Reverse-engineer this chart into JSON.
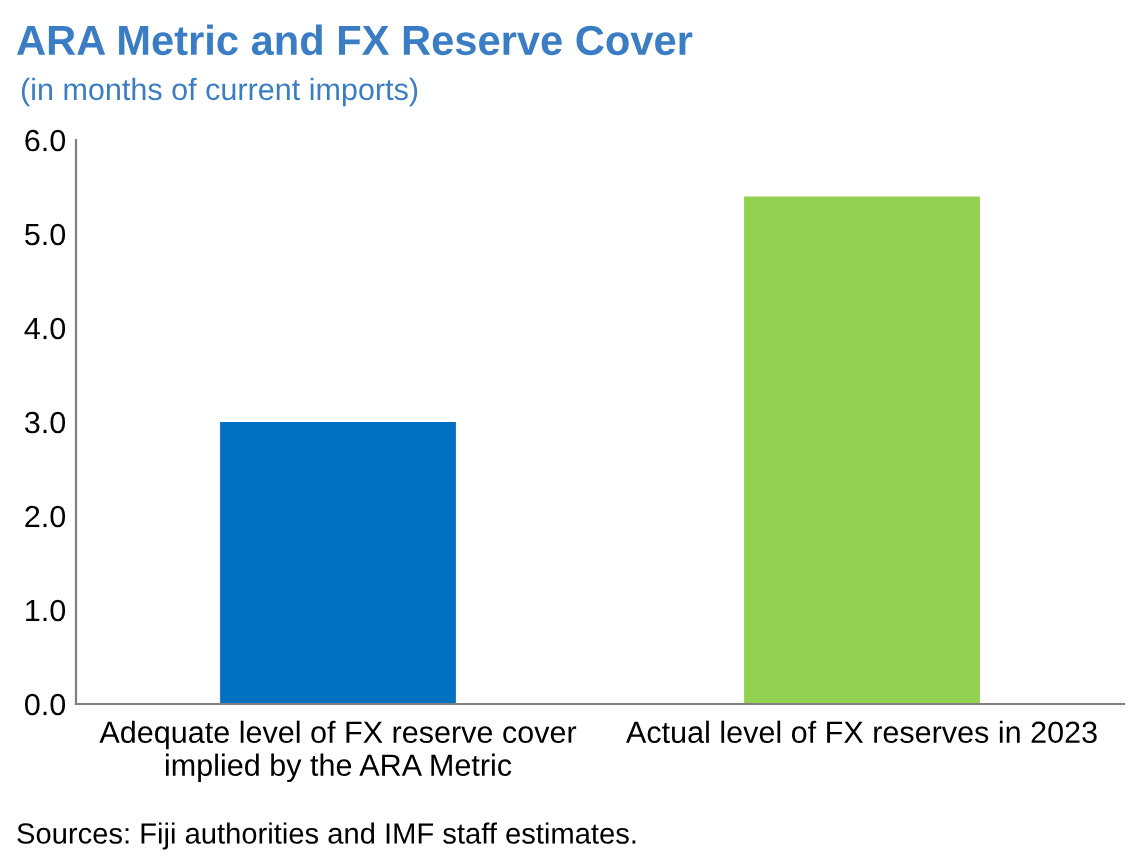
{
  "chart_data": {
    "type": "bar",
    "title": "ARA Metric and FX Reserve Cover",
    "subtitle": "(in months of current imports)",
    "categories": [
      "Adequate level of FX reserve cover\nimplied by the ARA Metric",
      "Actual level of FX reserves in 2023"
    ],
    "values": [
      3.0,
      5.4
    ],
    "colors": [
      "#0070c0",
      "#92d050"
    ],
    "ylim": [
      0,
      6
    ],
    "yticks": [
      {
        "value": 0,
        "label": "0.0"
      },
      {
        "value": 1,
        "label": "1.0"
      },
      {
        "value": 2,
        "label": "2.0"
      },
      {
        "value": 3,
        "label": "3.0"
      },
      {
        "value": 4,
        "label": "4.0"
      },
      {
        "value": 5,
        "label": "5.0"
      },
      {
        "value": 6,
        "label": "6.0"
      }
    ],
    "grid": false,
    "legend": false,
    "annotations": [
      "Sources: Fiji authorities and IMF staff estimates."
    ]
  }
}
